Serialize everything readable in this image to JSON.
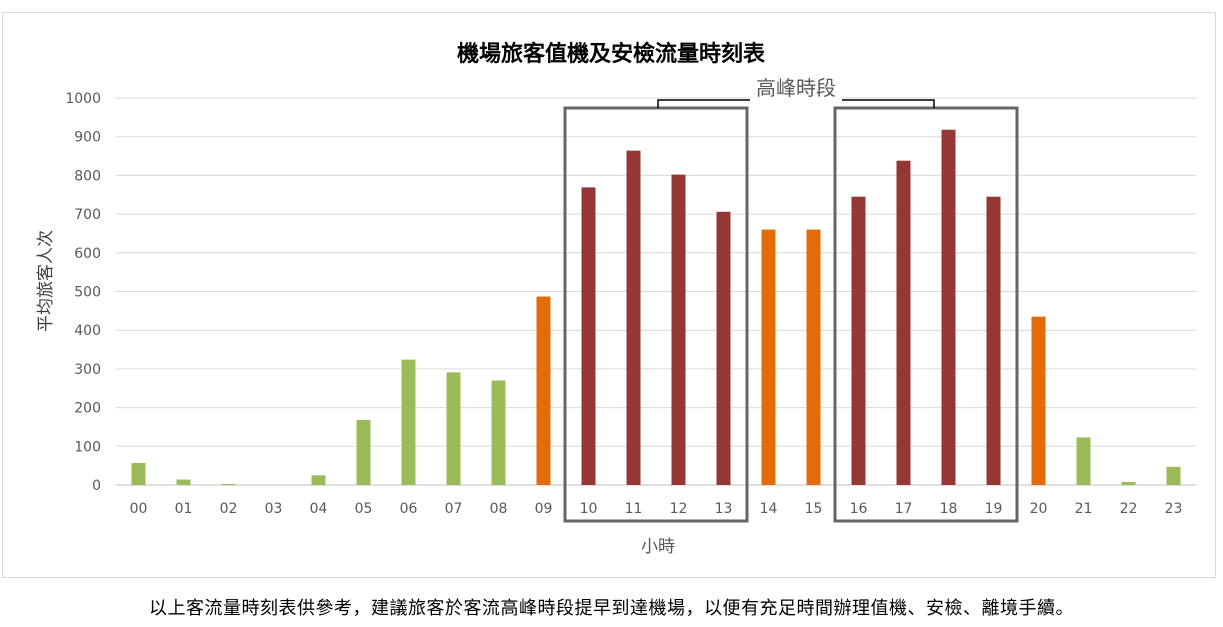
{
  "chart_data": {
    "type": "bar",
    "title": "機場旅客值機及安檢流量時刻表",
    "xlabel": "小時",
    "ylabel": "平均旅客人次",
    "ylim": [
      0,
      1000
    ],
    "yticks": [
      0,
      100,
      200,
      300,
      400,
      500,
      600,
      700,
      800,
      900,
      1000
    ],
    "grid": true,
    "categories": [
      "00",
      "01",
      "02",
      "03",
      "04",
      "05",
      "06",
      "07",
      "08",
      "09",
      "10",
      "11",
      "12",
      "13",
      "14",
      "15",
      "16",
      "17",
      "18",
      "19",
      "20",
      "21",
      "22",
      "23"
    ],
    "values": [
      57,
      14,
      1,
      0,
      25,
      168,
      324,
      291,
      270,
      487,
      769,
      864,
      802,
      706,
      660,
      660,
      745,
      838,
      918,
      745,
      435,
      123,
      8,
      47
    ],
    "levels": [
      "low",
      "low",
      "low",
      "low",
      "low",
      "low",
      "low",
      "low",
      "low",
      "mid",
      "peak",
      "peak",
      "peak",
      "peak",
      "mid",
      "mid",
      "peak",
      "peak",
      "peak",
      "peak",
      "mid",
      "low",
      "low",
      "low"
    ],
    "colors": {
      "low": "#9bbb59",
      "mid": "#e36c09",
      "peak": "#953735"
    },
    "peak_annotation": {
      "label": "高峰時段",
      "ranges": [
        [
          "10",
          "13"
        ],
        [
          "16",
          "19"
        ]
      ]
    }
  },
  "footnote": "以上客流量時刻表供參考，建議旅客於客流高峰時段提早到達機場，以便有充足時間辦理值機、安檢、離境手續。"
}
